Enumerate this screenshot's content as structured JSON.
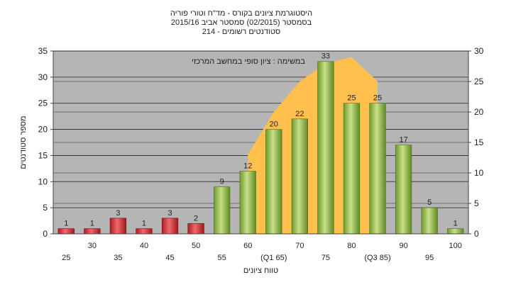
{
  "chart_data": {
    "type": "bar",
    "title_lines": [
      "היסטוגרמת ציונים בקורס - מד\"ח וטורי פוריה",
      "בסמסטר  (02/2015)  סמסטר אביב 2015/16",
      "סטודנטים רשומים - 214"
    ],
    "annotation": "במשימה : ציון סופי במחשב המרכזי",
    "xlabel": "טווח ציונים",
    "ylabel": "מספר סטודנטים",
    "ylim": [
      0,
      35
    ],
    "y_ticks": [
      0,
      5,
      10,
      15,
      20,
      25,
      30,
      35
    ],
    "y2lim": [
      0,
      30
    ],
    "y2_ticks": [
      0,
      5,
      10,
      15,
      20,
      25,
      30
    ],
    "categories": [
      "25",
      "30",
      "35",
      "40",
      "45",
      "50",
      "55",
      "60",
      "(Q1 65)",
      "70",
      "75",
      "80",
      "(Q3 85)",
      "90",
      "95",
      "100"
    ],
    "values": [
      1,
      1,
      3,
      1,
      3,
      2,
      9,
      12,
      20,
      22,
      33,
      25,
      25,
      17,
      5,
      1
    ],
    "bar_colors": [
      "#e0343a",
      "#e0343a",
      "#e0343a",
      "#e0343a",
      "#e0343a",
      "#e0343a",
      "#9bc44a",
      "#9bc44a",
      "#9bc44a",
      "#9bc44a",
      "#9bc44a",
      "#9bc44a",
      "#9bc44a",
      "#9bc44a",
      "#9bc44a",
      "#9bc44a"
    ],
    "distribution_curve": {
      "x_index": [
        7.5,
        8.5,
        9.5,
        10.5,
        11.5,
        12.5
      ],
      "y2_values": [
        13,
        20,
        25,
        28,
        29,
        25
      ]
    },
    "plot_background": "#b5b5b5",
    "curve_color": "#ffc04d",
    "grid": true
  }
}
